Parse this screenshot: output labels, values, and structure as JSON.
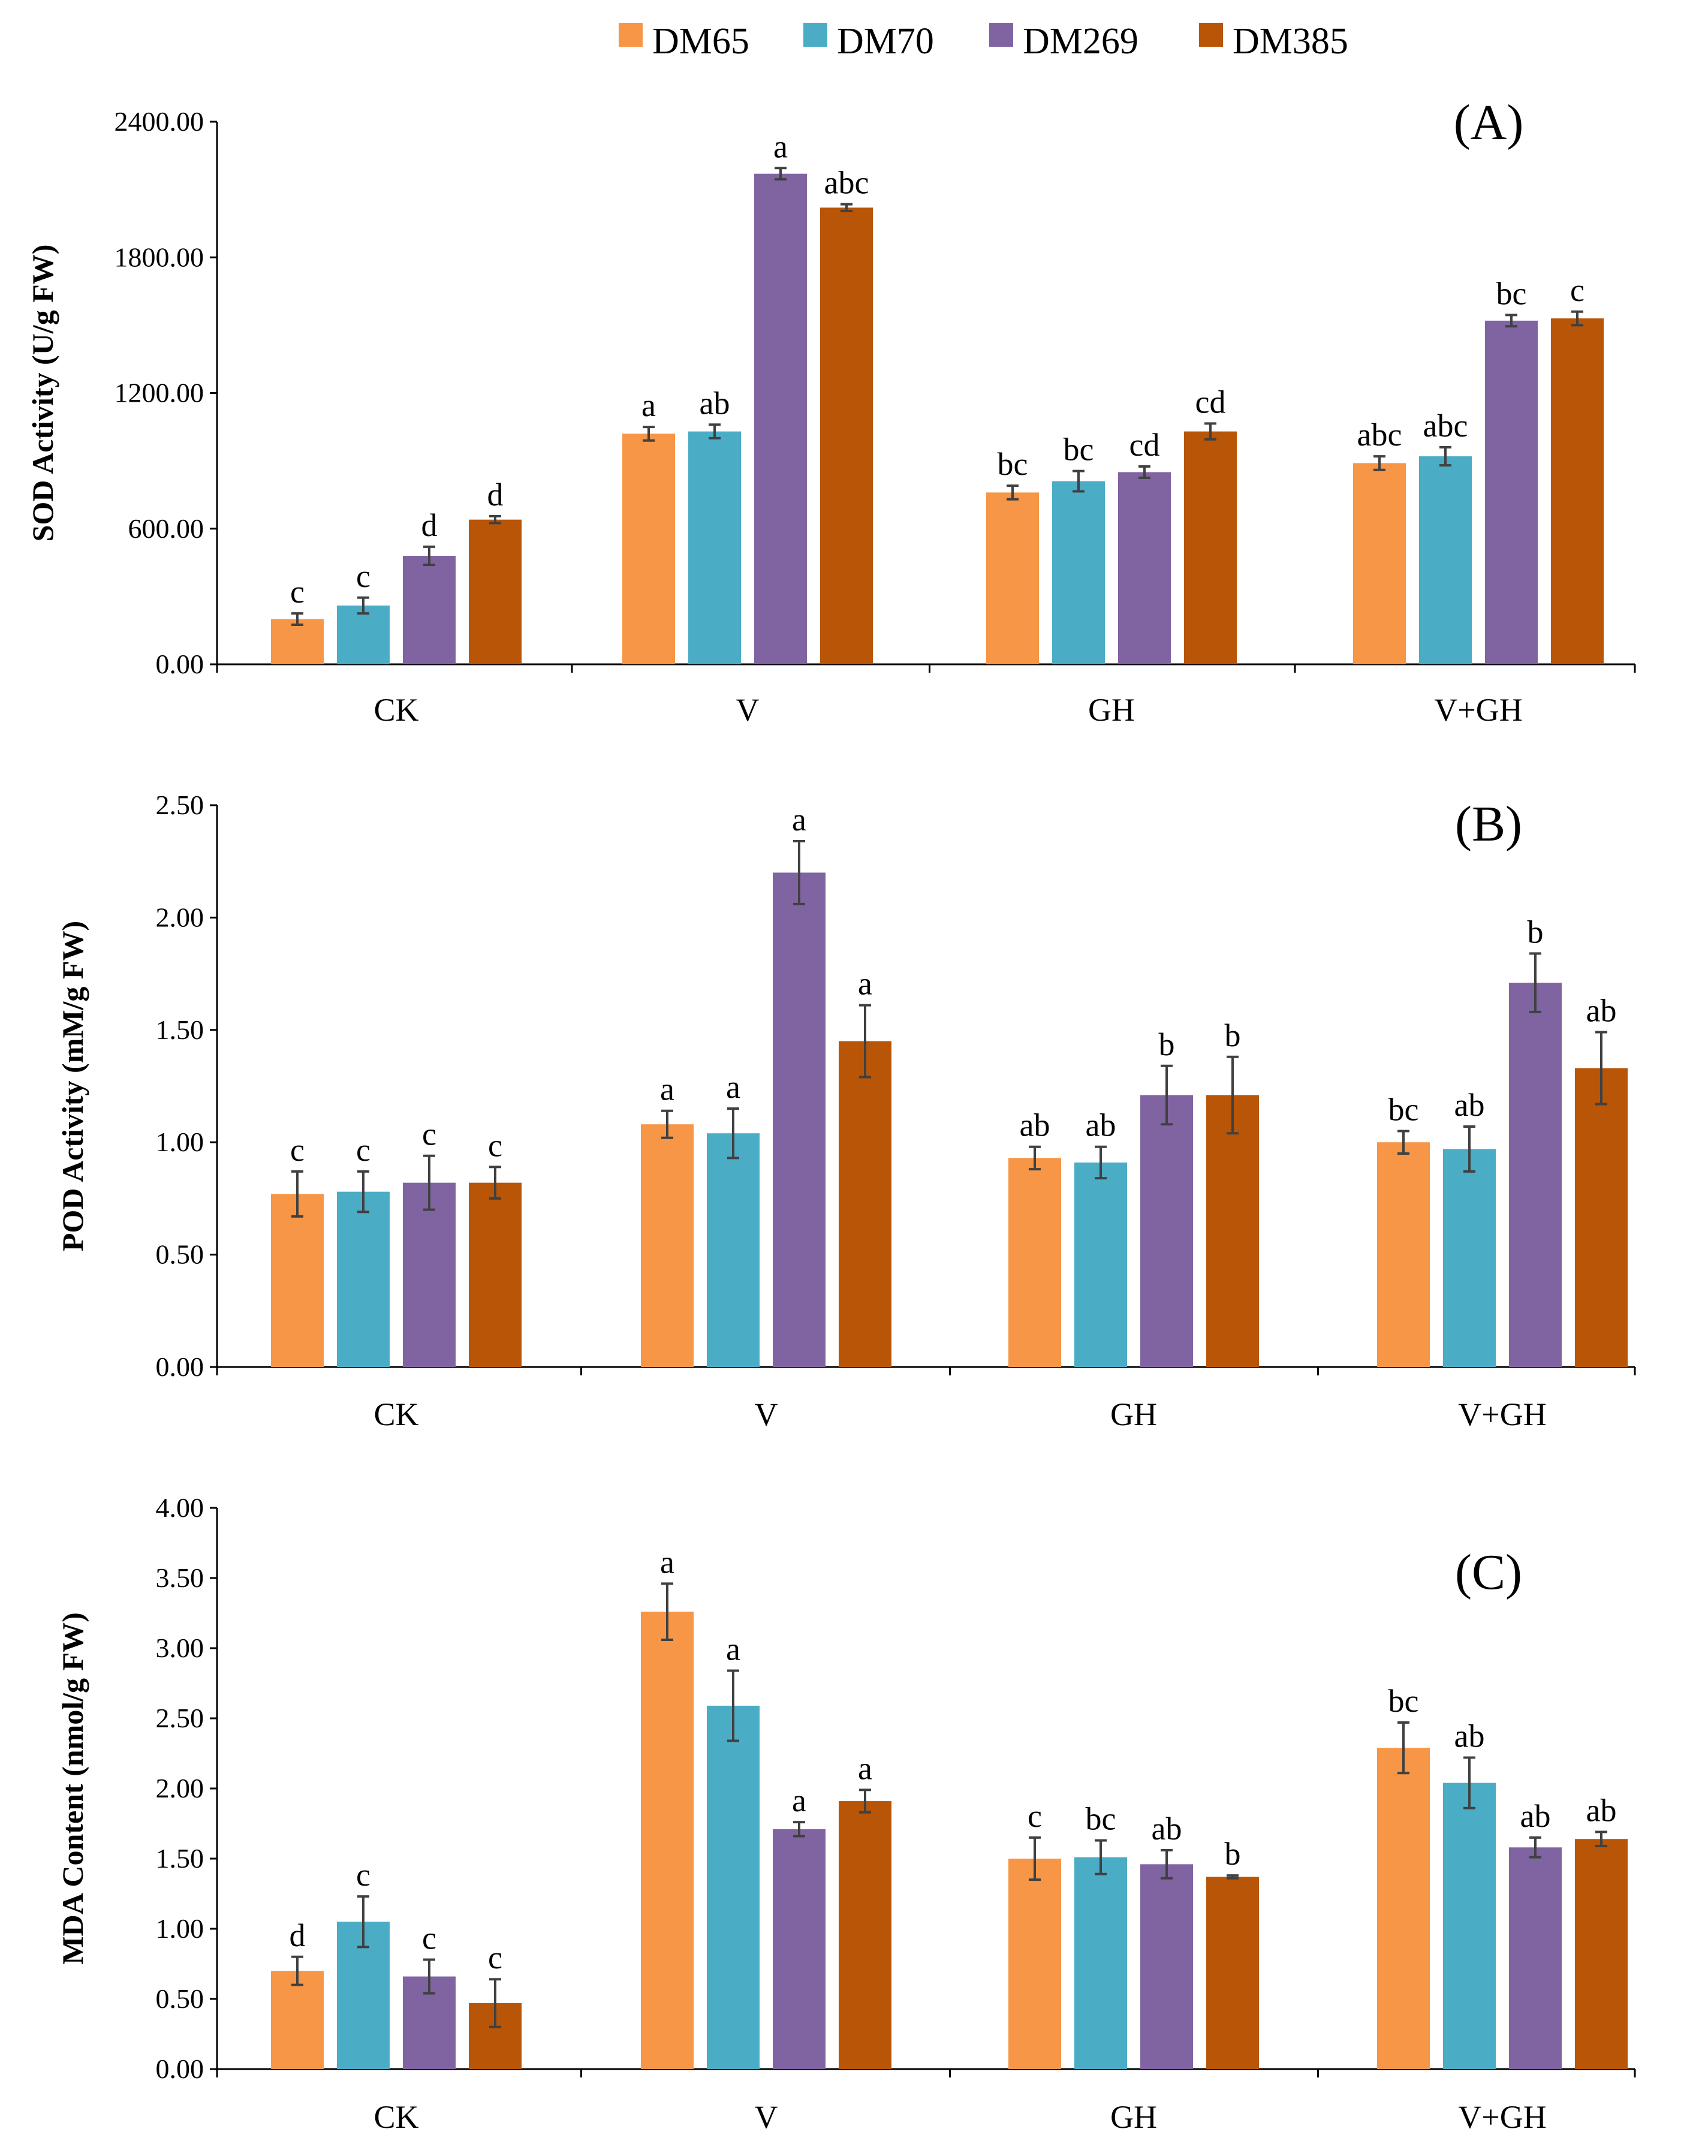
{
  "legend": [
    "DM65",
    "DM70",
    "DM269",
    "DM385"
  ],
  "colors": {
    "DM65": "#f79646",
    "DM70": "#4bacc6",
    "DM269": "#8064a2",
    "DM385": "#b85507"
  },
  "chart_data": [
    {
      "type": "bar",
      "panel": "(A)",
      "title": "",
      "ylabel": "SOD Activity (U/g FW)",
      "xlabel": "",
      "categories": [
        "CK",
        "V",
        "GH",
        "V+GH"
      ],
      "ylim": [
        0,
        2400
      ],
      "yticks": [
        "0.00",
        "600.00",
        "1200.00",
        "1800.00",
        "2400.00"
      ],
      "series": [
        {
          "name": "DM65",
          "values": [
            200,
            1020,
            760,
            890
          ],
          "errors": [
            25,
            30,
            30,
            30
          ],
          "labels": [
            "c",
            "a",
            "bc",
            "abc"
          ]
        },
        {
          "name": "DM70",
          "values": [
            260,
            1030,
            810,
            920
          ],
          "errors": [
            35,
            30,
            45,
            40
          ],
          "labels": [
            "c",
            "ab",
            "bc",
            "abc"
          ]
        },
        {
          "name": "DM269",
          "values": [
            480,
            2170,
            850,
            1520
          ],
          "errors": [
            40,
            25,
            25,
            25
          ],
          "labels": [
            "d",
            "a",
            "cd",
            "bc"
          ]
        },
        {
          "name": "DM385",
          "values": [
            640,
            2020,
            1030,
            1530
          ],
          "errors": [
            15,
            15,
            35,
            30
          ],
          "labels": [
            "d",
            "abc",
            "cd",
            "c"
          ]
        }
      ]
    },
    {
      "type": "bar",
      "panel": "(B)",
      "title": "",
      "ylabel": "POD Activity (mM/g FW)",
      "xlabel": "",
      "categories": [
        "CK",
        "V",
        "GH",
        "V+GH"
      ],
      "ylim": [
        0,
        2.5
      ],
      "yticks": [
        "0.00",
        "0.50",
        "1.00",
        "1.50",
        "2.00",
        "2.50"
      ],
      "series": [
        {
          "name": "DM65",
          "values": [
            0.77,
            1.08,
            0.93,
            1.0
          ],
          "errors": [
            0.1,
            0.06,
            0.05,
            0.05
          ],
          "labels": [
            "c",
            "a",
            "ab",
            "bc"
          ]
        },
        {
          "name": "DM70",
          "values": [
            0.78,
            1.04,
            0.91,
            0.97
          ],
          "errors": [
            0.09,
            0.11,
            0.07,
            0.1
          ],
          "labels": [
            "c",
            "a",
            "ab",
            "ab"
          ]
        },
        {
          "name": "DM269",
          "values": [
            0.82,
            2.2,
            1.21,
            1.71
          ],
          "errors": [
            0.12,
            0.14,
            0.13,
            0.13
          ],
          "labels": [
            "c",
            "a",
            "b",
            "b"
          ]
        },
        {
          "name": "DM385",
          "values": [
            0.82,
            1.45,
            1.21,
            1.33
          ],
          "errors": [
            0.07,
            0.16,
            0.17,
            0.16
          ],
          "labels": [
            "c",
            "a",
            "b",
            "ab"
          ]
        }
      ]
    },
    {
      "type": "bar",
      "panel": "(C)",
      "title": "",
      "ylabel": "MDA Content (nmol/g FW)",
      "xlabel": "",
      "categories": [
        "CK",
        "V",
        "GH",
        "V+GH"
      ],
      "ylim": [
        0,
        4.0
      ],
      "yticks": [
        "0.00",
        "0.50",
        "1.00",
        "1.50",
        "2.00",
        "2.50",
        "3.00",
        "3.50",
        "4.00"
      ],
      "series": [
        {
          "name": "DM65",
          "values": [
            0.7,
            3.26,
            1.5,
            2.29
          ],
          "errors": [
            0.1,
            0.2,
            0.15,
            0.18
          ],
          "labels": [
            "d",
            "a",
            "c",
            "bc"
          ]
        },
        {
          "name": "DM70",
          "values": [
            1.05,
            2.59,
            1.51,
            2.04
          ],
          "errors": [
            0.18,
            0.25,
            0.12,
            0.18
          ],
          "labels": [
            "c",
            "a",
            "bc",
            "ab"
          ]
        },
        {
          "name": "DM269",
          "values": [
            0.66,
            1.71,
            1.46,
            1.58
          ],
          "errors": [
            0.12,
            0.05,
            0.1,
            0.07
          ],
          "labels": [
            "c",
            "a",
            "ab",
            "ab"
          ]
        },
        {
          "name": "DM385",
          "values": [
            0.47,
            1.91,
            1.37,
            1.64
          ],
          "errors": [
            0.17,
            0.08,
            0.01,
            0.05
          ],
          "labels": [
            "c",
            "a",
            "b",
            "ab"
          ]
        }
      ]
    }
  ]
}
